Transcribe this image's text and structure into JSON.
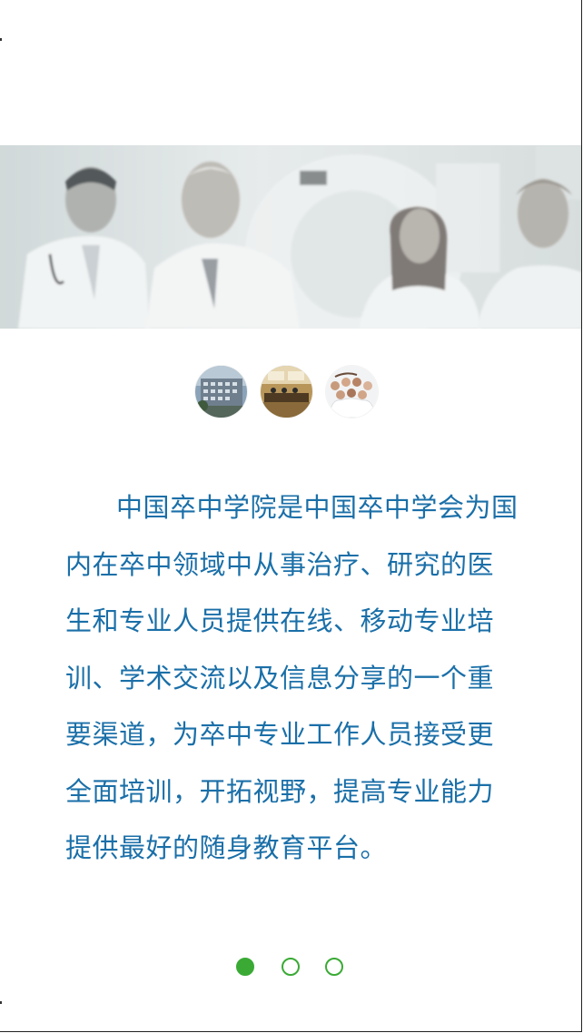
{
  "intro": {
    "text": "中国卒中学院是中国卒中学会为国内在卒中领域中从事治疗、研究的医生和专业人员提供在线、移动专业培训、学术交流以及信息分享的一个重要渠道，为卒中专业工作人员接受更全面培训，开拓视野，提高专业能力提供最好的随身教育平台。"
  },
  "banner": {
    "icon": "doctors-team-photo"
  },
  "thumbnails": [
    {
      "icon": "campus-building-photo"
    },
    {
      "icon": "conference-room-photo"
    },
    {
      "icon": "medical-staff-group-photo"
    }
  ],
  "pager": {
    "count": 3,
    "active_index": 0
  },
  "colors": {
    "text": "#1a6fa8",
    "pager_accent": "#3aaa35"
  }
}
